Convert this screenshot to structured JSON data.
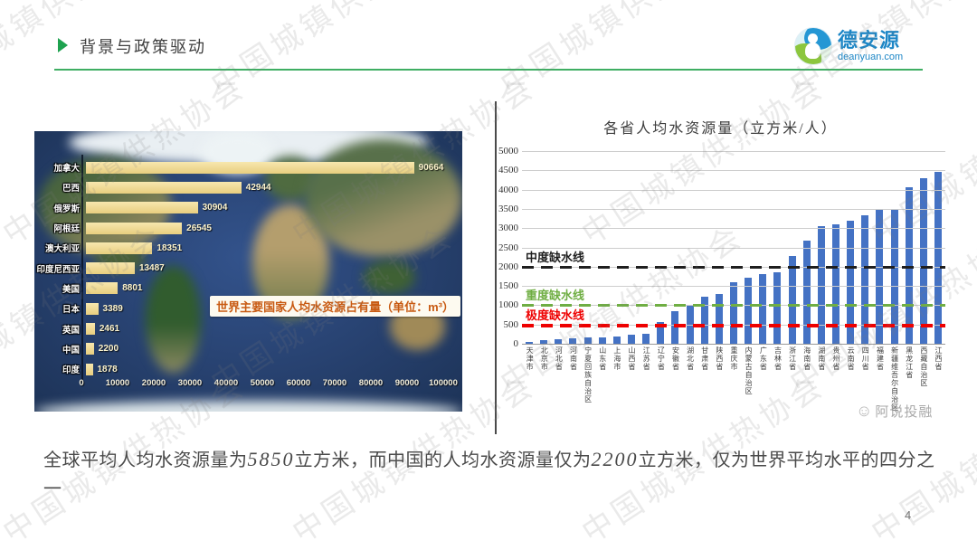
{
  "header": {
    "title": "背景与政策驱动"
  },
  "logo": {
    "name": "德安源",
    "domain": "deanyuan.com"
  },
  "watermark": {
    "text": "中国城镇供热协会"
  },
  "chart_watermark": {
    "text": "阿说投融"
  },
  "summary": {
    "segments": [
      {
        "text": "全球平均人均水资源量为",
        "emph": false
      },
      {
        "text": "5850",
        "emph": true
      },
      {
        "text": "立方米，而中国的人均水资源量仅为",
        "emph": false
      },
      {
        "text": "2200",
        "emph": true
      },
      {
        "text": "立方米，仅为世界平均水平的四分之一",
        "emph": false
      }
    ]
  },
  "footer": {
    "page_number": "4"
  },
  "chart_data": [
    {
      "type": "bar",
      "orientation": "horizontal",
      "title": "世界主要国家人均水资源占有量（单位：m³）",
      "categories": [
        "加拿大",
        "巴西",
        "俄罗斯",
        "阿根廷",
        "澳大利亚",
        "印度尼西亚",
        "美国",
        "日本",
        "英国",
        "中国",
        "印度"
      ],
      "values": [
        90664,
        42944,
        30904,
        26545,
        18351,
        13487,
        8801,
        3389,
        2461,
        2200,
        1878
      ],
      "xlim": [
        0,
        100000
      ],
      "x_ticks": [
        0,
        10000,
        20000,
        30000,
        40000,
        50000,
        60000,
        70000,
        80000,
        90000,
        100000
      ],
      "bar_color": "#efd996",
      "background": "satellite-world-map"
    },
    {
      "type": "bar",
      "orientation": "vertical",
      "title": "各省人均水资源量（立方米/人）",
      "categories": [
        "天津市",
        "北京市",
        "河北省",
        "河南省",
        "宁夏回族自治区",
        "山东省",
        "上海市",
        "山西省",
        "江苏省",
        "辽宁省",
        "安徽省",
        "湖北省",
        "甘肃省",
        "陕西省",
        "重庆市",
        "内蒙古自治区",
        "广东省",
        "吉林省",
        "浙江省",
        "海南省",
        "湖南省",
        "贵州省",
        "云南省",
        "四川省",
        "福建省",
        "新疆维吾尔自治区",
        "黑龙江省",
        "西藏自治区",
        "江西省"
      ],
      "values": [
        50,
        100,
        120,
        140,
        160,
        175,
        190,
        230,
        270,
        570,
        850,
        1020,
        1230,
        1280,
        1600,
        1720,
        1800,
        1860,
        2270,
        2680,
        3050,
        3110,
        3200,
        3330,
        3480,
        3500,
        4060,
        4300,
        4450
      ],
      "ylim": [
        0,
        5000
      ],
      "y_ticks": [
        0,
        500,
        1000,
        1500,
        2000,
        2500,
        3000,
        3500,
        4000,
        4500,
        5000
      ],
      "bar_color": "#4472c4",
      "grid": true,
      "legend": "none",
      "reference_lines": [
        {
          "label": "中度缺水线",
          "value": 2000,
          "color": "#1f1f1f",
          "thickness": 3
        },
        {
          "label": "重度缺水线",
          "value": 1000,
          "color": "#6fae43",
          "thickness": 3
        },
        {
          "label": "极度缺水线",
          "value": 500,
          "color": "#ee0000",
          "thickness": 4
        }
      ]
    }
  ]
}
